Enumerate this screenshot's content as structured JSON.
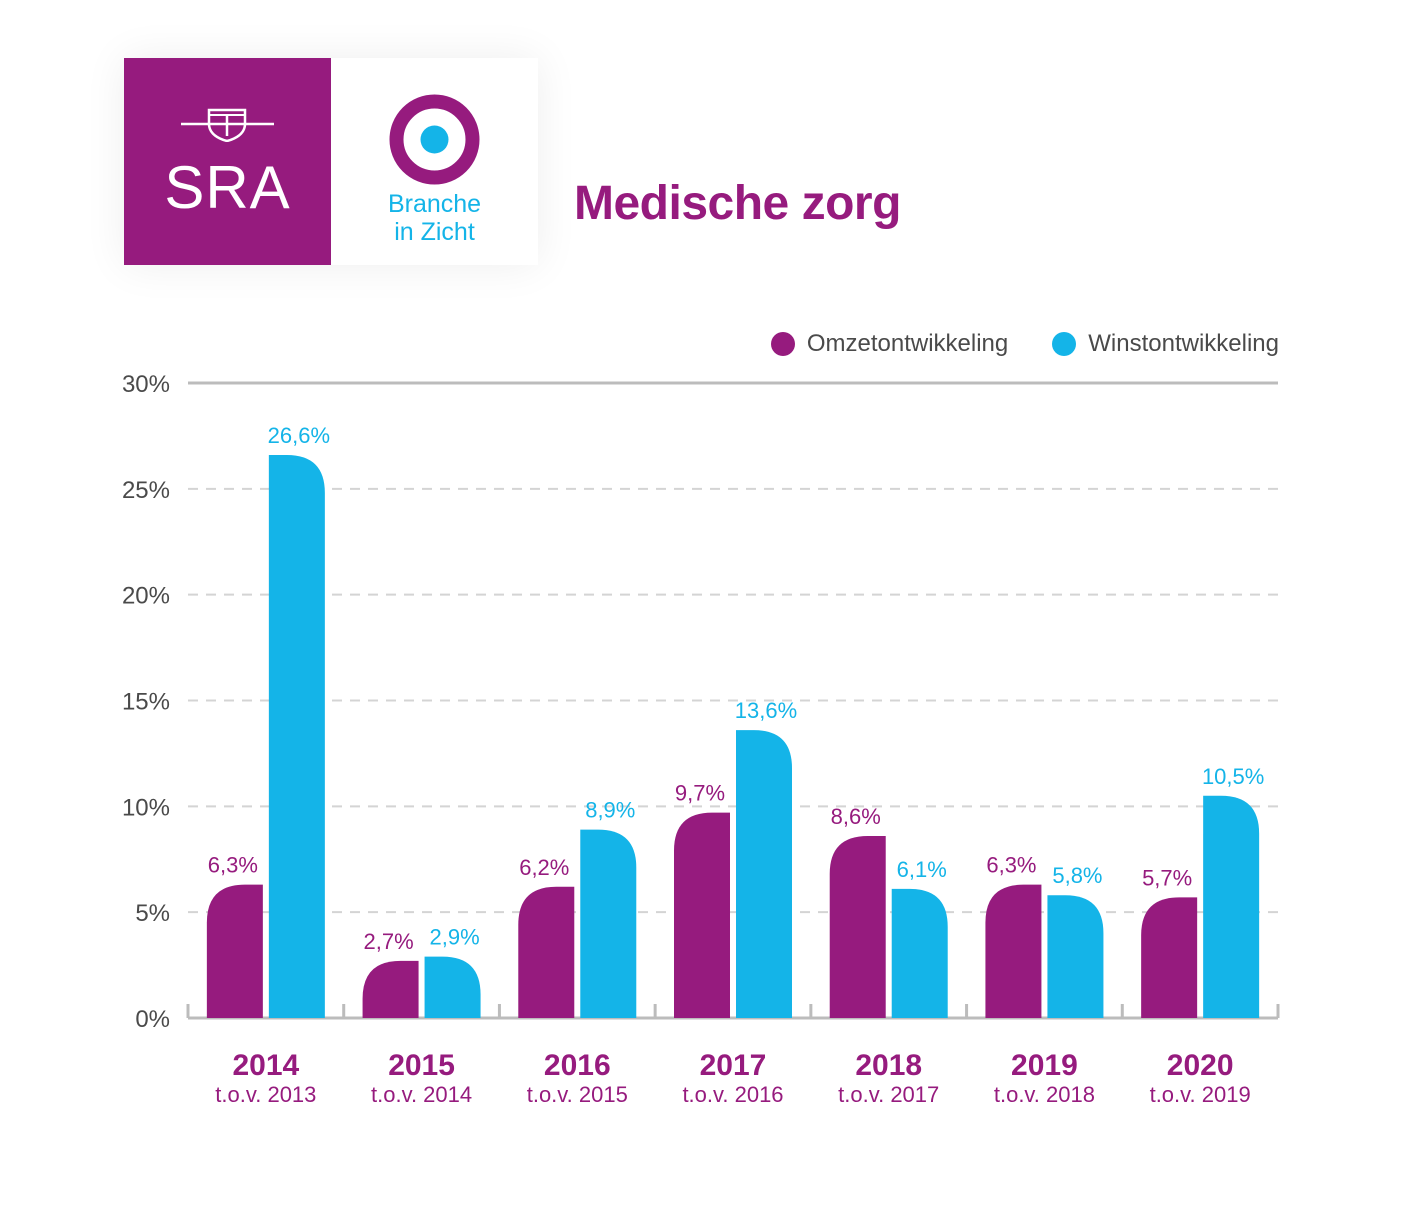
{
  "logo": {
    "sra": "SRA",
    "branche_line1": "Branche",
    "branche_line2": "in Zicht"
  },
  "title": "Medische zorg",
  "colors": {
    "brand": "#961b7e",
    "accent": "#14b4e8",
    "axis": "#bcbcbc",
    "grid": "#d4d4d4",
    "text": "#4a4a4a"
  },
  "chart_data": {
    "type": "bar",
    "categories": [
      "2014",
      "2015",
      "2016",
      "2017",
      "2018",
      "2019",
      "2020"
    ],
    "category_sublabels": [
      "t.o.v. 2013",
      "t.o.v. 2014",
      "t.o.v. 2015",
      "t.o.v. 2016",
      "t.o.v. 2017",
      "t.o.v. 2018",
      "t.o.v. 2019"
    ],
    "series": [
      {
        "name": "Omzetontwikkeling",
        "color": "#961b7e",
        "values": [
          6.3,
          2.7,
          6.2,
          9.7,
          8.6,
          6.3,
          5.7
        ],
        "labels": [
          "6,3%",
          "2,7%",
          "6,2%",
          "9,7%",
          "8,6%",
          "6,3%",
          "5,7%"
        ]
      },
      {
        "name": "Winstontwikkeling",
        "color": "#14b4e8",
        "values": [
          26.6,
          2.9,
          8.9,
          13.6,
          6.1,
          5.8,
          10.5
        ],
        "labels": [
          "26,6%",
          "2,9%",
          "8,9%",
          "13,6%",
          "6,1%",
          "5,8%",
          "10,5%"
        ]
      }
    ],
    "ylim": [
      0,
      30
    ],
    "yticks": [
      0,
      5,
      10,
      15,
      20,
      25,
      30
    ],
    "ytick_labels": [
      "0%",
      "5%",
      "10%",
      "15%",
      "20%",
      "25%",
      "30%"
    ],
    "grid": true,
    "legend_position": "top-right"
  }
}
